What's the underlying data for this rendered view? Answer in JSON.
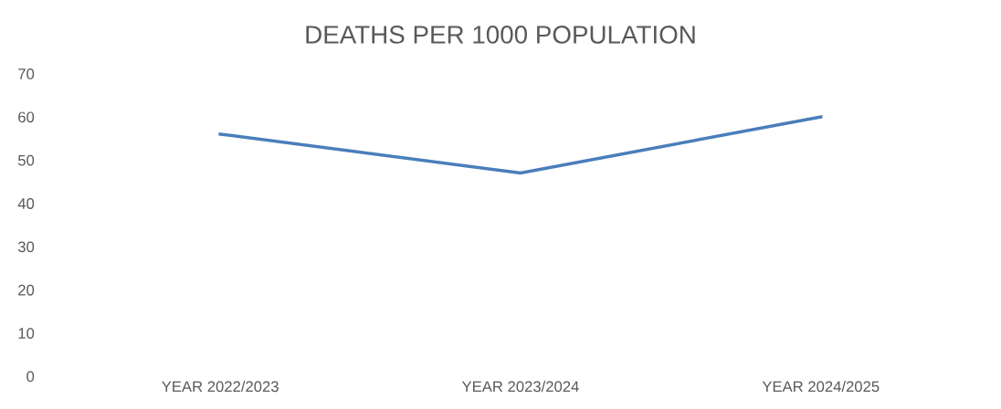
{
  "chart_data": {
    "type": "line",
    "title": "DEATHS PER 1000 POPULATION",
    "categories": [
      "YEAR 2022/2023",
      "YEAR 2023/2024",
      "YEAR 2024/2025"
    ],
    "series": [
      {
        "color": "#4a7ebb",
        "values": [
          56,
          47,
          60
        ]
      }
    ],
    "ylim": [
      0,
      70
    ],
    "yticks": [
      0,
      10,
      20,
      30,
      40,
      50,
      60,
      70
    ],
    "grid": false,
    "marker": "none",
    "line_style": "solid"
  }
}
